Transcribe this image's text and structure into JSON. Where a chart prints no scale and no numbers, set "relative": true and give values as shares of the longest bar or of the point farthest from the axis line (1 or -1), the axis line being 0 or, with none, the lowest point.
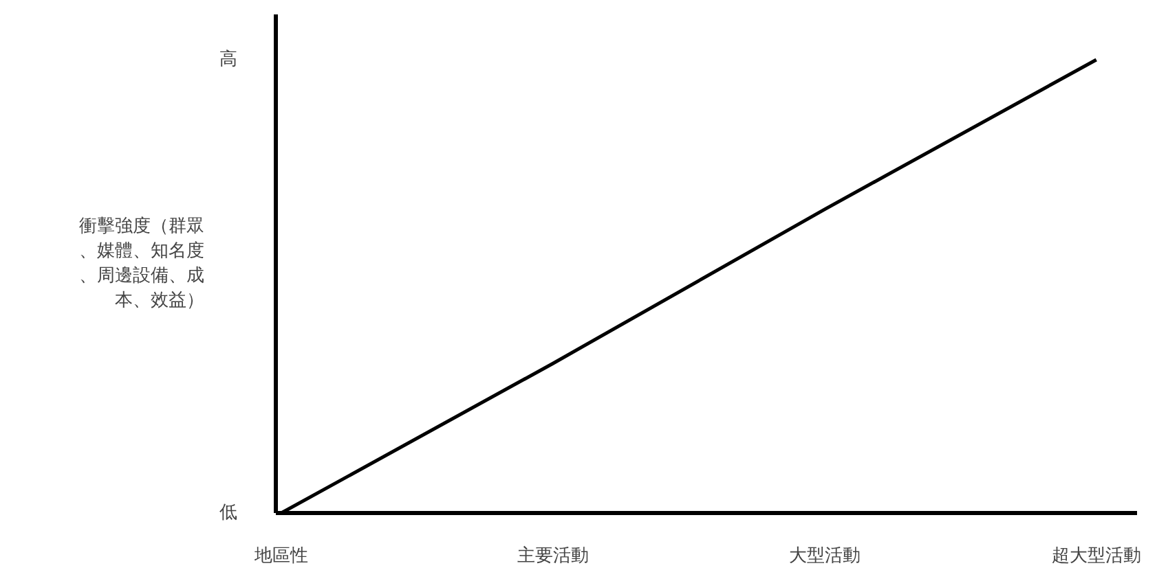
{
  "chart_data": {
    "type": "line",
    "relative": true,
    "ylabel": "衝擊強度（群眾、媒體、知名度、周邊設備、成本、效益）",
    "categories": [
      "地區性",
      "主要活動",
      "大型活動",
      "超大型活動"
    ],
    "series": [
      {
        "color": "#000000",
        "values": [
          0,
          0.33,
          0.67,
          1
        ]
      }
    ],
    "annotations": [
      "低",
      "高"
    ],
    "grid": false,
    "marker": "none",
    "line_style": "solid"
  }
}
